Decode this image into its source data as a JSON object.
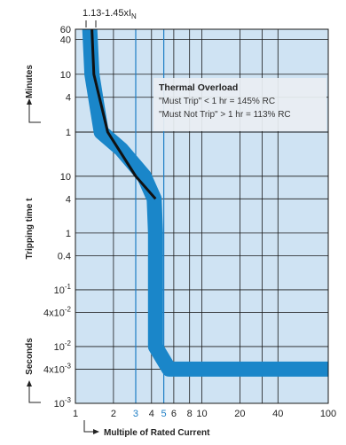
{
  "chart_data": {
    "type": "line",
    "title": "",
    "top_label": "1.13-1.45xI",
    "top_label_sub": "N",
    "ylabel": "Tripping time t",
    "y_unit_upper": "Minutes",
    "y_unit_lower": "Seconds",
    "xlabel": "Multiple of Rated Current",
    "x_scale": "log",
    "x_range": [
      1,
      100
    ],
    "x_ticks": [
      "1",
      "2",
      "3",
      "4",
      "5",
      "6",
      "8",
      "10",
      "20",
      "40",
      "100"
    ],
    "x_ticks_highlighted": [
      "3",
      "5"
    ],
    "y_ticks_minutes": [
      "60",
      "40",
      "10",
      "4",
      "1"
    ],
    "y_ticks_seconds": [
      "10",
      "4",
      "1",
      "0.4",
      "10-1",
      "4x10-2",
      "10-2",
      "4x10-3",
      "10-3"
    ],
    "y_tick_parts": [
      {
        "base": "60",
        "exp": ""
      },
      {
        "base": "40",
        "exp": ""
      },
      {
        "base": "10",
        "exp": ""
      },
      {
        "base": "4",
        "exp": ""
      },
      {
        "base": "1",
        "exp": ""
      },
      {
        "base": "10",
        "exp": ""
      },
      {
        "base": "4",
        "exp": ""
      },
      {
        "base": "1",
        "exp": ""
      },
      {
        "base": "0.4",
        "exp": ""
      },
      {
        "base": "10",
        "exp": "-1"
      },
      {
        "base": "4x10",
        "exp": "-2"
      },
      {
        "base": "10",
        "exp": "-2"
      },
      {
        "base": "4x10",
        "exp": "-3"
      },
      {
        "base": "10",
        "exp": "-3"
      }
    ],
    "annotation": {
      "title": "Thermal Overload",
      "lines": [
        "\"Must Trip\" < 1 hr = 145% RC",
        "\"Must Not Trip\" > 1 hr = 113% RC"
      ]
    },
    "series": [
      {
        "role": "trip band",
        "points": [
          [
            1.3,
            "60 min"
          ],
          [
            1.35,
            "10 min"
          ],
          [
            1.6,
            "1 min"
          ],
          [
            2.3,
            "30 s"
          ],
          [
            3.5,
            "10 s"
          ],
          [
            4.2,
            "4 s"
          ],
          [
            4.3,
            "1 s"
          ],
          [
            4.3,
            "0.01 s"
          ],
          [
            5.5,
            "0.004 s"
          ],
          [
            100,
            "0.004 s"
          ]
        ]
      },
      {
        "role": "characteristic curve",
        "points": [
          [
            1.35,
            "60 min"
          ],
          [
            1.4,
            "10 min"
          ],
          [
            1.8,
            "1 min"
          ],
          [
            3.0,
            "10 s"
          ],
          [
            4.3,
            "4 s"
          ]
        ]
      }
    ],
    "colors": {
      "plot_background": "#cfe3f3",
      "band": "#1a86c9",
      "curve": "#111111",
      "grid": "#1a1a1a",
      "highlight_tick": "#1f7fc6",
      "annotation_bg": "#e9eef2"
    },
    "grid": true
  }
}
